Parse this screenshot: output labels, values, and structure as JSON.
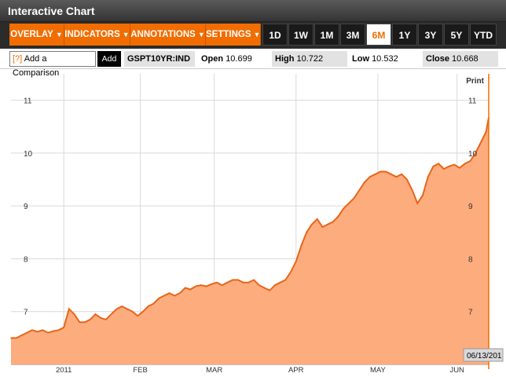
{
  "window": {
    "title": "Interactive Chart"
  },
  "toolbar": {
    "menus": [
      {
        "label": "OVERLAY",
        "name": "overlay-menu-button"
      },
      {
        "label": "INDICATORS",
        "name": "indicators-menu-button"
      },
      {
        "label": "ANNOTATIONS",
        "name": "annotations-menu-button"
      },
      {
        "label": "SETTINGS",
        "name": "settings-menu-button"
      }
    ],
    "caret": "▼",
    "ranges": [
      "1D",
      "1W",
      "1M",
      "3M",
      "6M",
      "1Y",
      "3Y",
      "5Y",
      "YTD"
    ],
    "active_range": "6M"
  },
  "infobar": {
    "compare_prefix": "[?]",
    "compare_placeholder": "Add a Comparison",
    "add_label": "Add",
    "ticker": "GSPT10YR:IND",
    "open_label": "Open",
    "open_value": "10.699",
    "high_label": "High",
    "high_value": "10.722",
    "low_label": "Low",
    "low_value": "10.532",
    "close_label": "Close",
    "close_value": "10.668"
  },
  "print_label": "Print",
  "date_readout": "06/13/201",
  "colors": {
    "accent": "#f26d00",
    "fill": "#fdac7d",
    "line": "#e8651a"
  },
  "chart_data": {
    "type": "area",
    "xlabel": "",
    "ylabel": "",
    "ylim": [
      6,
      11.5
    ],
    "yticks": [
      7,
      8,
      9,
      10,
      11
    ],
    "xtick_labels": [
      "2011",
      "FEB",
      "MAR",
      "APR",
      "MAY",
      "JUN"
    ],
    "xtick_dates": [
      "2011-01-03",
      "2011-02-01",
      "2011-03-01",
      "2011-04-01",
      "2011-05-02",
      "2011-06-01"
    ],
    "grid": true,
    "x": [
      "2010-12-14",
      "2010-12-16",
      "2010-12-18",
      "2010-12-20",
      "2010-12-22",
      "2010-12-24",
      "2010-12-26",
      "2010-12-28",
      "2010-12-30",
      "2011-01-01",
      "2011-01-03",
      "2011-01-05",
      "2011-01-07",
      "2011-01-09",
      "2011-01-11",
      "2011-01-13",
      "2011-01-15",
      "2011-01-17",
      "2011-01-19",
      "2011-01-21",
      "2011-01-23",
      "2011-01-25",
      "2011-01-27",
      "2011-01-29",
      "2011-01-31",
      "2011-02-02",
      "2011-02-04",
      "2011-02-06",
      "2011-02-08",
      "2011-02-10",
      "2011-02-12",
      "2011-02-14",
      "2011-02-16",
      "2011-02-18",
      "2011-02-20",
      "2011-02-22",
      "2011-02-24",
      "2011-02-26",
      "2011-02-28",
      "2011-03-02",
      "2011-03-04",
      "2011-03-06",
      "2011-03-08",
      "2011-03-10",
      "2011-03-12",
      "2011-03-14",
      "2011-03-16",
      "2011-03-18",
      "2011-03-20",
      "2011-03-22",
      "2011-03-24",
      "2011-03-26",
      "2011-03-28",
      "2011-03-30",
      "2011-04-01",
      "2011-04-03",
      "2011-04-05",
      "2011-04-07",
      "2011-04-09",
      "2011-04-11",
      "2011-04-13",
      "2011-04-15",
      "2011-04-17",
      "2011-04-19",
      "2011-04-21",
      "2011-04-23",
      "2011-04-25",
      "2011-04-27",
      "2011-04-29",
      "2011-05-01",
      "2011-05-03",
      "2011-05-05",
      "2011-05-07",
      "2011-05-09",
      "2011-05-11",
      "2011-05-13",
      "2011-05-15",
      "2011-05-17",
      "2011-05-19",
      "2011-05-21",
      "2011-05-23",
      "2011-05-25",
      "2011-05-27",
      "2011-05-29",
      "2011-05-31",
      "2011-06-02",
      "2011-06-04",
      "2011-06-06",
      "2011-06-08",
      "2011-06-10",
      "2011-06-12",
      "2011-06-13"
    ],
    "values": [
      6.5,
      6.5,
      6.55,
      6.6,
      6.65,
      6.62,
      6.65,
      6.6,
      6.63,
      6.65,
      6.7,
      7.05,
      6.95,
      6.8,
      6.8,
      6.85,
      6.95,
      6.88,
      6.85,
      6.95,
      7.05,
      7.1,
      7.05,
      7.0,
      6.92,
      7.0,
      7.1,
      7.15,
      7.25,
      7.3,
      7.35,
      7.3,
      7.35,
      7.45,
      7.42,
      7.48,
      7.5,
      7.48,
      7.52,
      7.55,
      7.5,
      7.55,
      7.6,
      7.6,
      7.55,
      7.55,
      7.6,
      7.5,
      7.45,
      7.4,
      7.5,
      7.55,
      7.6,
      7.75,
      7.95,
      8.25,
      8.5,
      8.65,
      8.75,
      8.6,
      8.65,
      8.7,
      8.8,
      8.95,
      9.05,
      9.15,
      9.3,
      9.45,
      9.55,
      9.6,
      9.65,
      9.65,
      9.6,
      9.55,
      9.6,
      9.5,
      9.3,
      9.05,
      9.2,
      9.55,
      9.75,
      9.8,
      9.7,
      9.75,
      9.78,
      9.72,
      9.8,
      9.85,
      10.0,
      10.2,
      10.4,
      10.67
    ]
  }
}
